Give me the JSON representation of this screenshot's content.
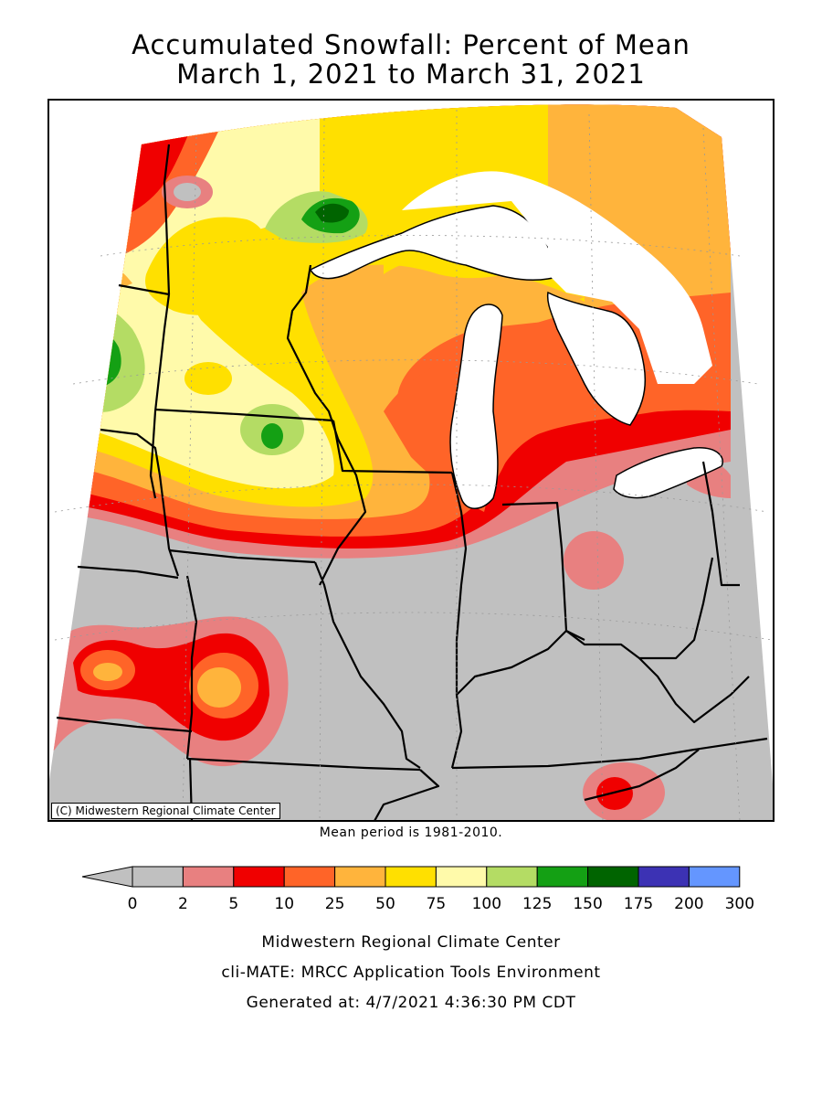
{
  "title": {
    "line1": "Accumulated Snowfall: Percent of Mean",
    "line2": "March 1, 2021 to March 31, 2021"
  },
  "map": {
    "credit": "(C) Midwestern Regional Climate Center",
    "mean_period_note": "Mean period is 1981-2010.",
    "colors": {
      "land": "#c0c0c0",
      "water": "#ffffff",
      "border": "#000000"
    }
  },
  "legend": {
    "lowest_color": "#c0c0c0",
    "bins": [
      {
        "color": "#c0c0c0"
      },
      {
        "color": "#e88080"
      },
      {
        "color": "#f00000"
      },
      {
        "color": "#ff6428"
      },
      {
        "color": "#ffb43c"
      },
      {
        "color": "#ffe000"
      },
      {
        "color": "#fffaaa"
      },
      {
        "color": "#b4dc64"
      },
      {
        "color": "#14a014"
      },
      {
        "color": "#006400"
      },
      {
        "color": "#3c32b4"
      },
      {
        "color": "#6496ff"
      }
    ],
    "tick_labels": [
      "0",
      "2",
      "5",
      "10",
      "25",
      "50",
      "75",
      "100",
      "125",
      "150",
      "175",
      "200",
      "300"
    ]
  },
  "footer": {
    "line1": "Midwestern Regional Climate Center",
    "line2": "cli-MATE: MRCC Application Tools Environment",
    "line3": "Generated at: 4/7/2021 4:36:30 PM CDT"
  }
}
